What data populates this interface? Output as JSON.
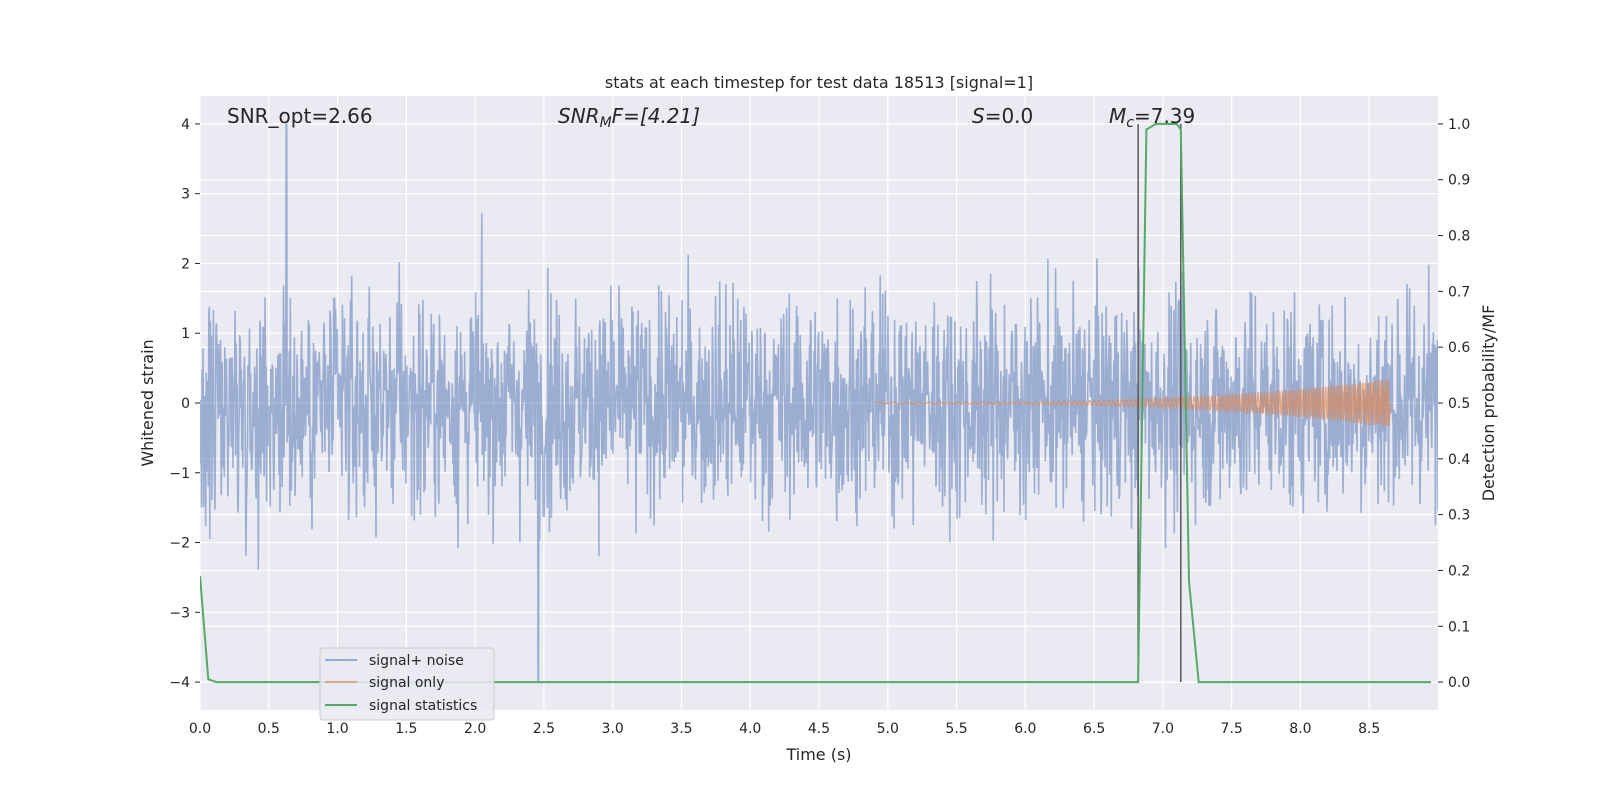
{
  "chart_data": {
    "type": "line",
    "title": "stats at each timestep for test data 18513 [signal=1]",
    "xlabel": "Time (s)",
    "ylabel_left": "Whitened strain",
    "ylabel_right": "Detection probability/MF",
    "xlim": [
      0.0,
      9.0
    ],
    "ylim_left": [
      -4.4,
      4.4
    ],
    "ylim_right": [
      -0.05,
      1.05
    ],
    "xticks": [
      "0.0",
      "0.5",
      "1.0",
      "1.5",
      "2.0",
      "2.5",
      "3.0",
      "3.5",
      "4.0",
      "4.5",
      "5.0",
      "5.5",
      "6.0",
      "6.5",
      "7.0",
      "7.5",
      "8.0",
      "8.5"
    ],
    "yticks_left": [
      "−4",
      "−3",
      "−2",
      "−1",
      "0",
      "1",
      "2",
      "3",
      "4"
    ],
    "yticks_right": [
      "0.0",
      "0.1",
      "0.2",
      "0.3",
      "0.4",
      "0.5",
      "0.6",
      "0.7",
      "0.8",
      "0.9",
      "1.0"
    ],
    "grid": true,
    "legend_position": "lower-left",
    "annotations": {
      "snr_opt": "SNR_opt=2.66",
      "snr_mf_main": "SNR",
      "snr_mf_sub": "M",
      "snr_mf_rest": "F=[4.21]",
      "s_main": "S",
      "s_rest": "=0.0",
      "mc_main": "M",
      "mc_sub": "c",
      "mc_rest": "=7.39"
    },
    "series": [
      {
        "name": "signal+ noise",
        "color": "#4c72b0",
        "axis": "left",
        "description_values": {
          "noise_envelope": [
            -3.8,
            3.3
          ],
          "peak_max": 4.0,
          "peak_max_x": 0.63,
          "peak_min": -4.0,
          "peak_min_x": 2.46
        }
      },
      {
        "name": "signal only",
        "color": "#dd8452",
        "axis": "left",
        "chirp": {
          "start_x": 4.9,
          "end_x": 8.65,
          "start_amplitude": 0.01,
          "end_amplitude": 0.35
        }
      },
      {
        "name": "signal statistics",
        "color": "#55a868",
        "axis": "right",
        "x": [
          0.0,
          0.06,
          0.12,
          6.77,
          6.82,
          6.88,
          6.95,
          7.1,
          7.13,
          7.19,
          7.26,
          8.95
        ],
        "y": [
          0.19,
          0.005,
          0.0,
          0.0,
          0.0,
          0.99,
          1.0,
          1.0,
          0.99,
          0.18,
          0.0,
          0.0
        ]
      }
    ],
    "vertical_lines": [
      {
        "x": 6.82,
        "color": "#595959"
      },
      {
        "x": 7.13,
        "color": "#595959"
      }
    ]
  }
}
